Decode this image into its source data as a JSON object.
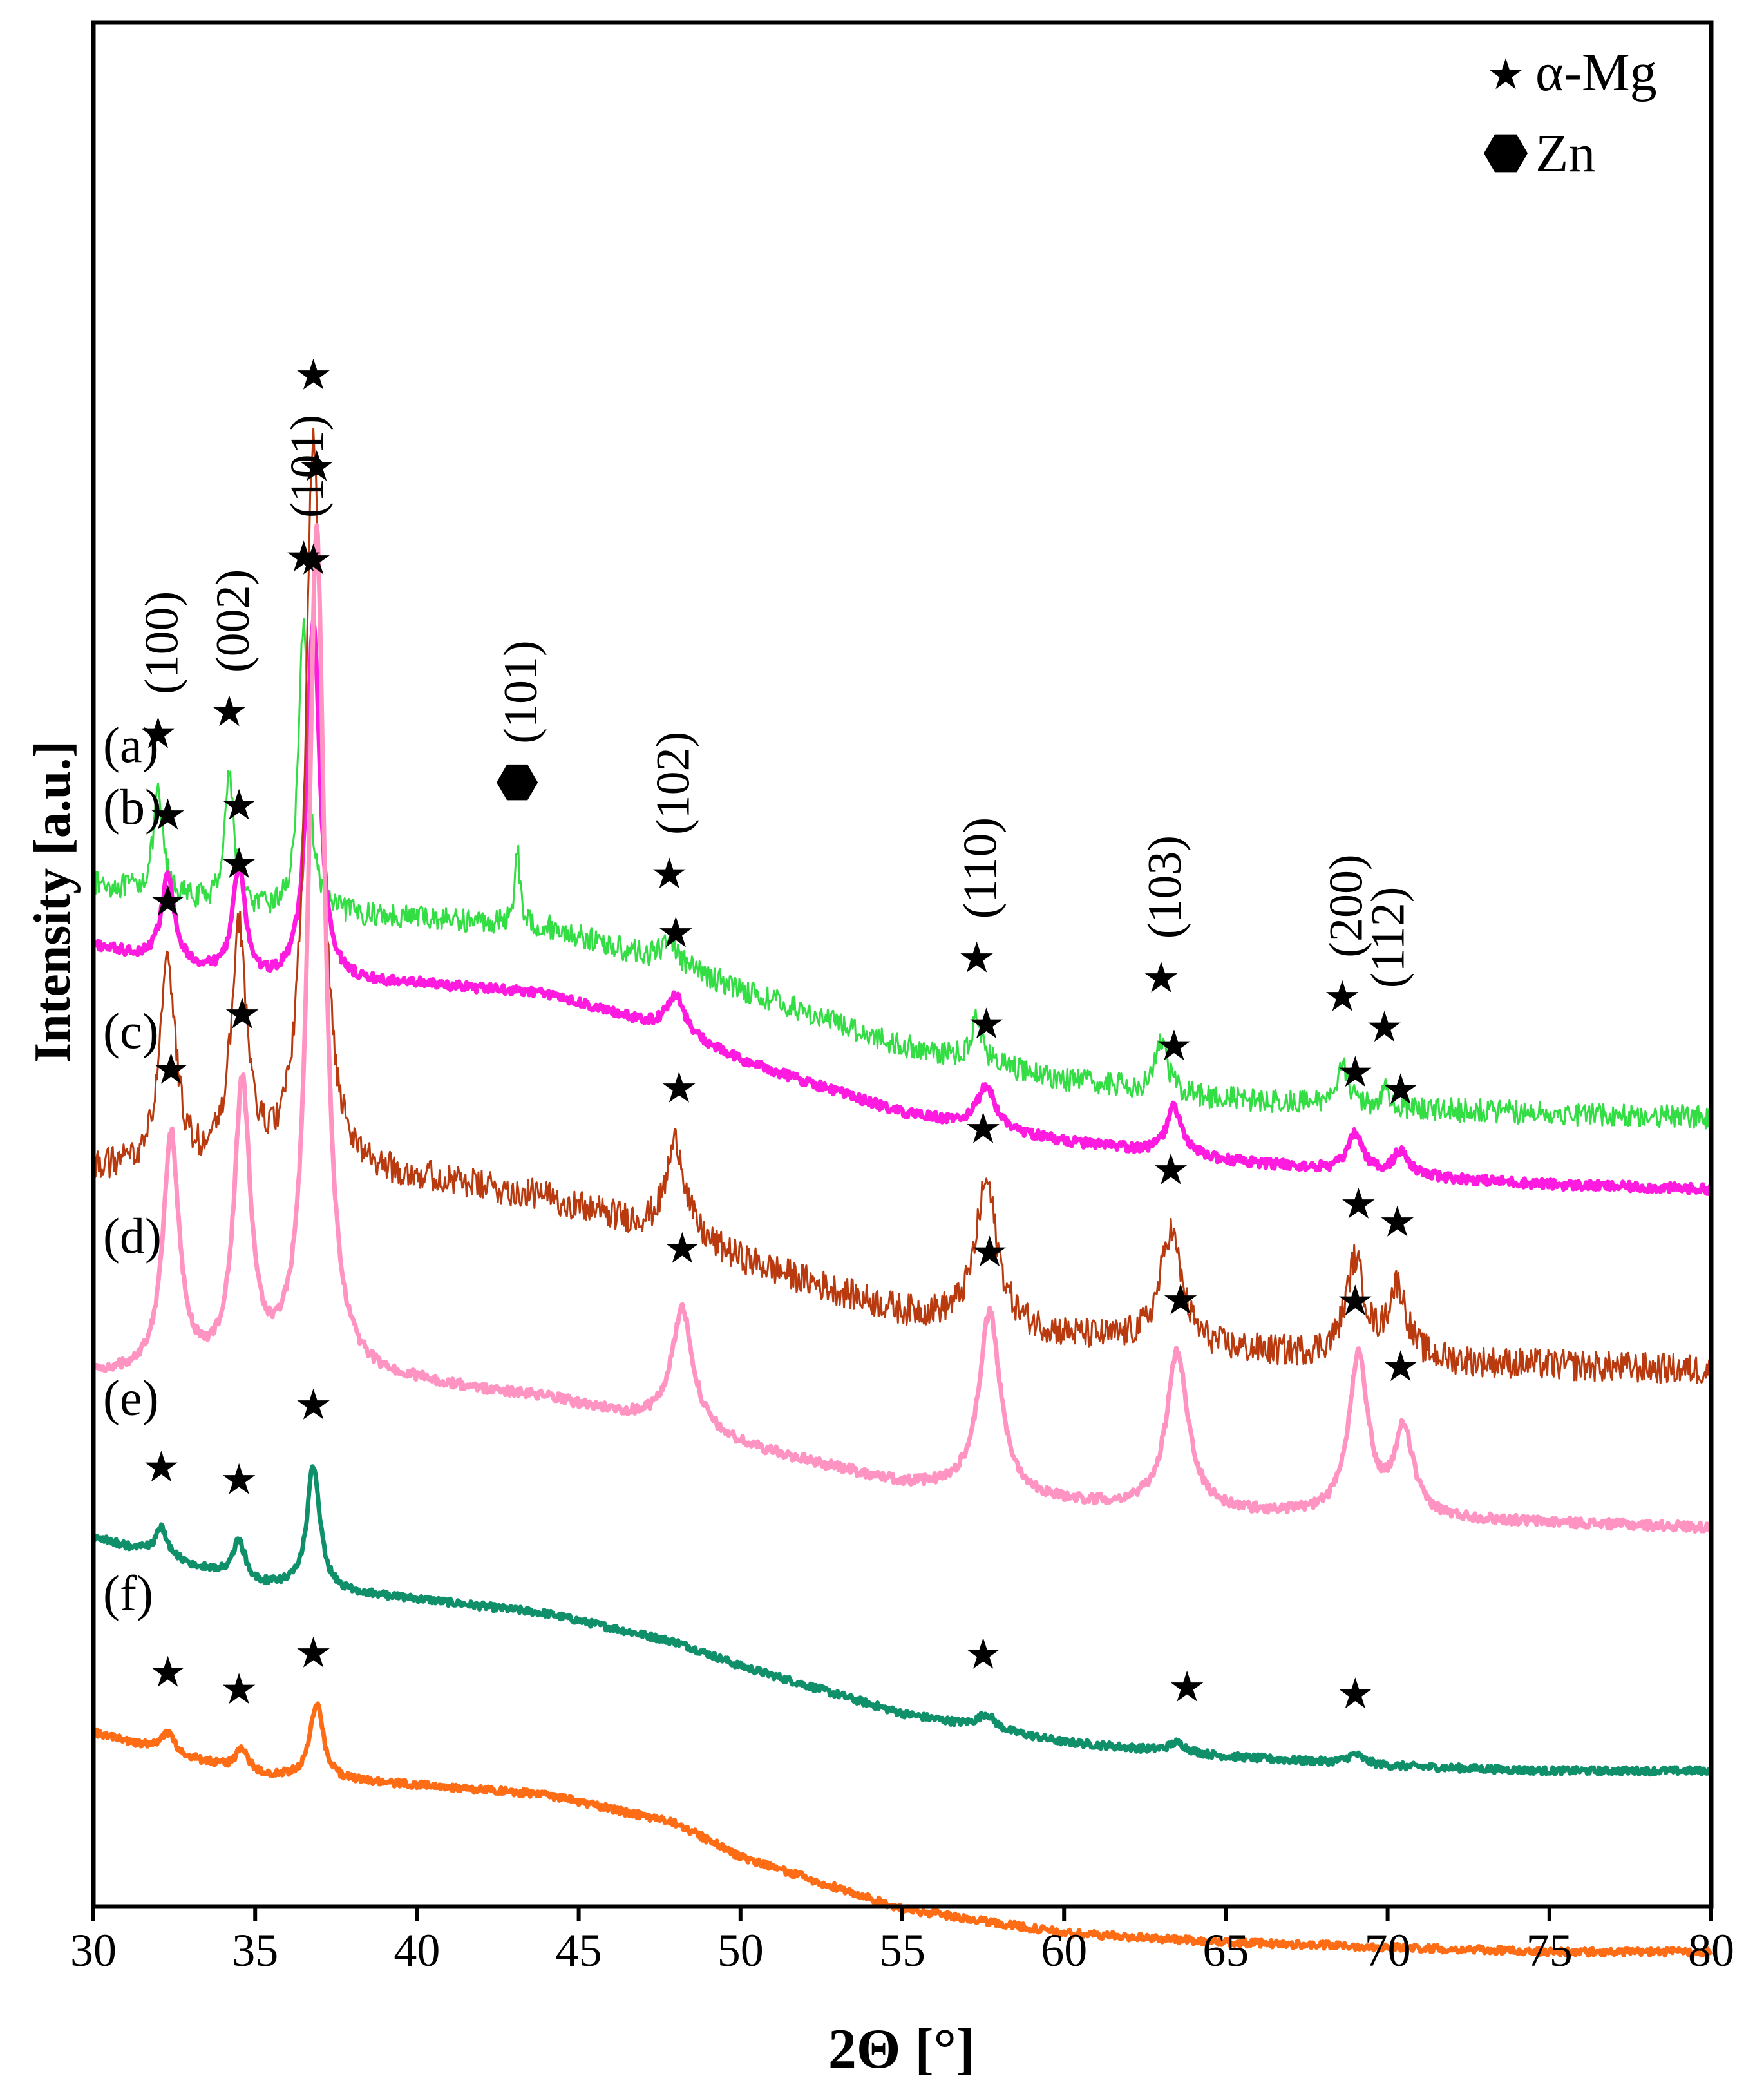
{
  "chart_data": {
    "type": "line",
    "title": "",
    "xlabel": "2Θ [°]",
    "ylabel": "Intensity [a.u.]",
    "xlim": [
      30,
      80
    ],
    "x_ticks": [
      "30",
      "35",
      "40",
      "45",
      "50",
      "55",
      "60",
      "65",
      "70",
      "75",
      "80"
    ],
    "y_ticks": [],
    "legend": {
      "position": "top-right",
      "entries": [
        {
          "marker": "star",
          "label": "α-Mg"
        },
        {
          "marker": "hexagon",
          "label": "Zn"
        }
      ]
    },
    "series": [
      {
        "name": "(a)",
        "color": "#33dd44",
        "noise": 0.5,
        "peak_width_scale": 0.6,
        "thick": false,
        "baseline": [
          [
            30,
            12.8
          ],
          [
            35,
            12.2
          ],
          [
            40,
            12.1
          ],
          [
            44,
            11.9
          ],
          [
            48,
            11.1
          ],
          [
            50,
            10.6
          ],
          [
            55,
            9.4
          ],
          [
            60,
            8.7
          ],
          [
            65,
            8.3
          ],
          [
            70,
            8.1
          ],
          [
            75,
            8.0
          ],
          [
            80,
            7.9
          ]
        ],
        "peaks": [
          [
            32.0,
            2.1,
            0.3
          ],
          [
            34.2,
            2.8,
            0.3
          ],
          [
            36.5,
            6.2,
            0.3
          ],
          [
            43.1,
            1.7,
            0.15
          ],
          [
            47.8,
            0.6,
            0.4
          ],
          [
            57.3,
            0.9,
            0.35
          ],
          [
            63.0,
            1.1,
            0.35
          ],
          [
            68.6,
            1.0,
            0.3
          ],
          [
            69.9,
            0.4,
            0.3
          ]
        ],
        "markers": [
          [
            32.0,
            "star"
          ],
          [
            34.2,
            "star"
          ],
          [
            36.5,
            "star"
          ],
          [
            43.1,
            "hexagon"
          ],
          [
            47.8,
            "star"
          ],
          [
            57.3,
            "star"
          ],
          [
            63.0,
            "star"
          ],
          [
            68.6,
            "star"
          ],
          [
            69.9,
            "star"
          ]
        ],
        "hkl": [
          [
            32.0,
            "(100)"
          ],
          [
            34.2,
            "(002)"
          ],
          [
            36.5,
            "(101)"
          ],
          [
            43.1,
            "(101)"
          ],
          [
            47.8,
            "(102)"
          ],
          [
            57.3,
            "(110)"
          ],
          [
            63.0,
            "(103)"
          ],
          [
            68.6,
            "(200)"
          ],
          [
            69.9,
            "(112)"
          ]
        ]
      },
      {
        "name": "(b)",
        "color": "#ff1ae0",
        "noise": 0.2,
        "peak_width_scale": 0.8,
        "thick": true,
        "baseline": [
          [
            30,
            11.5
          ],
          [
            35,
            10.7
          ],
          [
            40,
            10.7
          ],
          [
            44,
            10.5
          ],
          [
            48,
            9.7
          ],
          [
            50,
            9.1
          ],
          [
            55,
            8.0
          ],
          [
            60,
            7.4
          ],
          [
            65,
            7.0
          ],
          [
            70,
            6.7
          ],
          [
            75,
            6.5
          ],
          [
            80,
            6.4
          ]
        ],
        "peaks": [
          [
            32.3,
            1.8,
            0.3
          ],
          [
            34.5,
            2.3,
            0.3
          ],
          [
            36.8,
            7.6,
            0.3
          ],
          [
            48.0,
            0.8,
            0.4
          ],
          [
            57.6,
            0.9,
            0.4
          ],
          [
            63.4,
            1.0,
            0.35
          ],
          [
            69.0,
            0.8,
            0.35
          ],
          [
            70.4,
            0.5,
            0.35
          ]
        ],
        "markers": [
          [
            32.3,
            "star"
          ],
          [
            34.5,
            "star"
          ],
          [
            36.8,
            "star"
          ],
          [
            48.0,
            "star"
          ],
          [
            57.6,
            "star"
          ],
          [
            63.4,
            "star"
          ],
          [
            69.0,
            "star"
          ],
          [
            70.4,
            "star"
          ]
        ],
        "hkl": []
      },
      {
        "name": "(c)",
        "color": "#b83a0e",
        "noise": 0.65,
        "peak_width_scale": 1.0,
        "thick": false,
        "baseline": [
          [
            30,
            6.8
          ],
          [
            35,
            6.6
          ],
          [
            40,
            6.6
          ],
          [
            44,
            6.2
          ],
          [
            48,
            5.4
          ],
          [
            50,
            4.9
          ],
          [
            55,
            3.8
          ],
          [
            60,
            3.3
          ],
          [
            65,
            3.0
          ],
          [
            70,
            2.8
          ],
          [
            75,
            2.7
          ],
          [
            80,
            2.6
          ]
        ],
        "peaks": [
          [
            32.3,
            4.3,
            0.3
          ],
          [
            34.5,
            5.0,
            0.3
          ],
          [
            36.8,
            15.5,
            0.3
          ],
          [
            48.0,
            2.0,
            0.35
          ],
          [
            57.6,
            3.0,
            0.4
          ],
          [
            63.3,
            2.4,
            0.4
          ],
          [
            69.0,
            2.0,
            0.35
          ],
          [
            70.3,
            1.5,
            0.35
          ]
        ],
        "markers": [
          [
            32.3,
            "star"
          ],
          [
            34.5,
            "star"
          ],
          [
            36.8,
            "star"
          ],
          [
            48.1,
            "star"
          ],
          [
            57.5,
            "star"
          ],
          [
            63.3,
            "star"
          ],
          [
            69.1,
            "star"
          ],
          [
            70.3,
            "star"
          ]
        ],
        "hkl": []
      },
      {
        "name": "(d)",
        "color": "#ff94c2",
        "noise": 0.2,
        "peak_width_scale": 1.0,
        "thick": true,
        "baseline": [
          [
            30,
            2.5
          ],
          [
            35,
            2.4
          ],
          [
            40,
            2.3
          ],
          [
            44,
            2.0
          ],
          [
            48,
            1.4
          ],
          [
            50,
            1.0
          ],
          [
            55,
            0.2
          ],
          [
            60,
            -0.2
          ],
          [
            65,
            -0.4
          ],
          [
            70,
            -0.5
          ],
          [
            75,
            -0.6
          ],
          [
            80,
            -0.7
          ]
        ],
        "peaks": [
          [
            32.4,
            5.0,
            0.3
          ],
          [
            34.6,
            6.0,
            0.3
          ],
          [
            36.9,
            17.8,
            0.3
          ],
          [
            48.2,
            2.5,
            0.4
          ],
          [
            57.7,
            3.8,
            0.4
          ],
          [
            63.5,
            3.3,
            0.4
          ],
          [
            69.1,
            3.4,
            0.35
          ],
          [
            70.5,
            1.8,
            0.35
          ]
        ],
        "markers": [
          [
            32.4,
            "star"
          ],
          [
            34.6,
            "star"
          ],
          [
            36.9,
            "star"
          ],
          [
            48.2,
            "star"
          ],
          [
            57.7,
            "star"
          ],
          [
            63.6,
            "star"
          ],
          [
            69.0,
            "star"
          ],
          [
            70.4,
            "star"
          ]
        ],
        "hkl": []
      },
      {
        "name": "(e)",
        "color": "#10906a",
        "noise": 0.15,
        "peak_width_scale": 0.8,
        "thick": true,
        "baseline": [
          [
            30,
            -0.9
          ],
          [
            35,
            -1.9
          ],
          [
            40,
            -2.2
          ],
          [
            44,
            -2.5
          ],
          [
            48,
            -3.1
          ],
          [
            50,
            -3.6
          ],
          [
            55,
            -4.6
          ],
          [
            60,
            -5.2
          ],
          [
            65,
            -5.5
          ],
          [
            70,
            -5.7
          ],
          [
            75,
            -5.8
          ],
          [
            80,
            -5.8
          ]
        ],
        "peaks": [
          [
            32.1,
            0.6,
            0.3
          ],
          [
            34.5,
            0.8,
            0.3
          ],
          [
            36.8,
            2.6,
            0.3
          ],
          [
            57.6,
            0.3,
            0.4
          ],
          [
            63.5,
            0.2,
            0.4
          ],
          [
            69.0,
            0.2,
            0.4
          ]
        ],
        "markers": [
          [
            32.1,
            "star"
          ],
          [
            34.5,
            "star"
          ],
          [
            36.8,
            "star"
          ],
          [
            57.5,
            "star"
          ],
          [
            63.8,
            "star"
          ],
          [
            69.0,
            "star"
          ]
        ],
        "hkl": []
      },
      {
        "name": "(f)",
        "color": "#ff6c16",
        "noise": 0.15,
        "peak_width_scale": 0.8,
        "thick": true,
        "baseline": [
          [
            30,
            -5.0
          ],
          [
            35,
            -5.9
          ],
          [
            40,
            -6.1
          ],
          [
            44,
            -6.3
          ],
          [
            48,
            -6.9
          ],
          [
            50,
            -7.6
          ],
          [
            55,
            -8.7
          ],
          [
            60,
            -9.2
          ],
          [
            65,
            -9.4
          ],
          [
            70,
            -9.5
          ],
          [
            75,
            -9.6
          ],
          [
            80,
            -9.6
          ]
        ],
        "peaks": [
          [
            32.3,
            0.4,
            0.3
          ],
          [
            34.6,
            0.5,
            0.3
          ],
          [
            36.9,
            1.6,
            0.3
          ]
        ],
        "markers": [
          [
            32.3,
            "star"
          ],
          [
            34.5,
            "star"
          ],
          [
            36.8,
            "star"
          ]
        ],
        "hkl": []
      }
    ]
  }
}
